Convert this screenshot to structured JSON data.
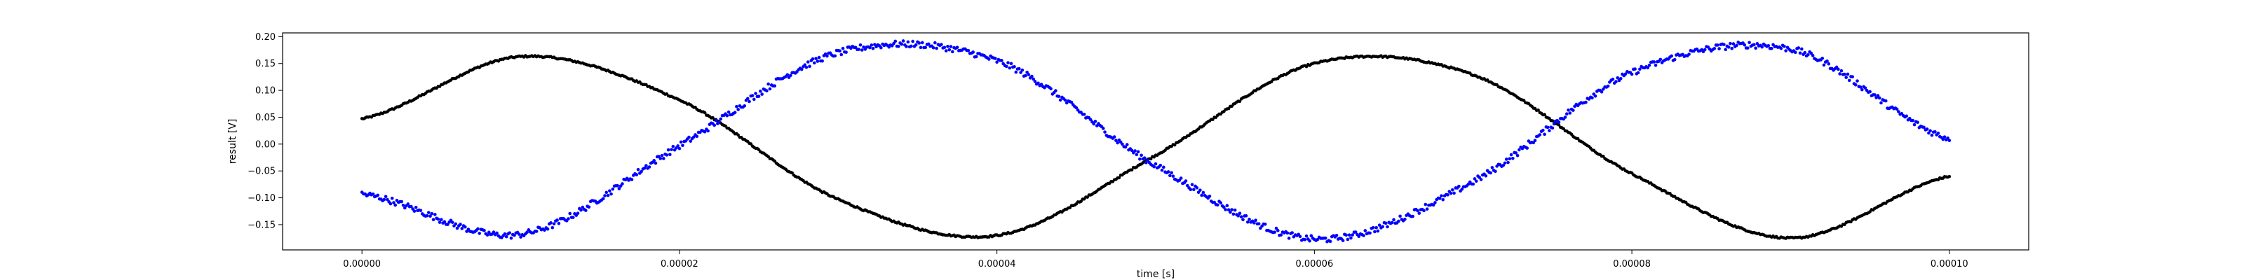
{
  "chart_data": {
    "type": "scatter",
    "title": "",
    "xlabel": "time [s]",
    "ylabel": "result [V]",
    "xlim": [
      -5e-06,
      0.000105
    ],
    "ylim": [
      -0.197,
      0.207
    ],
    "grid": false,
    "legend": "none",
    "x_ticks": [
      0,
      2e-05,
      4e-05,
      6e-05,
      8e-05,
      0.0001
    ],
    "x_tick_labels": [
      "0.00000",
      "0.00002",
      "0.00004",
      "0.00006",
      "0.00008",
      "0.00010"
    ],
    "y_ticks": [
      -0.15,
      -0.1,
      -0.05,
      0.0,
      0.05,
      0.1,
      0.15,
      0.2
    ],
    "y_tick_labels": [
      "−0.15",
      "−0.10",
      "−0.05",
      "0.00",
      "0.05",
      "0.10",
      "0.15",
      "0.20"
    ],
    "series": [
      {
        "color": "#000000",
        "noise": 0.0015,
        "x": [
          0,
          1e-05,
          2e-05,
          3e-05,
          4e-05,
          5e-05,
          6e-05,
          7e-05,
          8e-05,
          9e-05,
          0.0001
        ],
        "values": [
          0.047,
          0.163,
          0.082,
          -0.103,
          -0.17,
          -0.021,
          0.15,
          0.129,
          -0.055,
          -0.175,
          -0.06
        ]
      },
      {
        "color": "#0000ff",
        "noise": 0.006,
        "x": [
          0,
          1e-05,
          2e-05,
          3e-05,
          4e-05,
          5e-05,
          6e-05,
          7e-05,
          8e-05,
          9e-05,
          0.0001
        ],
        "values": [
          -0.093,
          -0.168,
          -0.003,
          0.17,
          0.155,
          -0.04,
          -0.177,
          -0.07,
          0.133,
          0.177,
          0.01
        ]
      }
    ]
  }
}
